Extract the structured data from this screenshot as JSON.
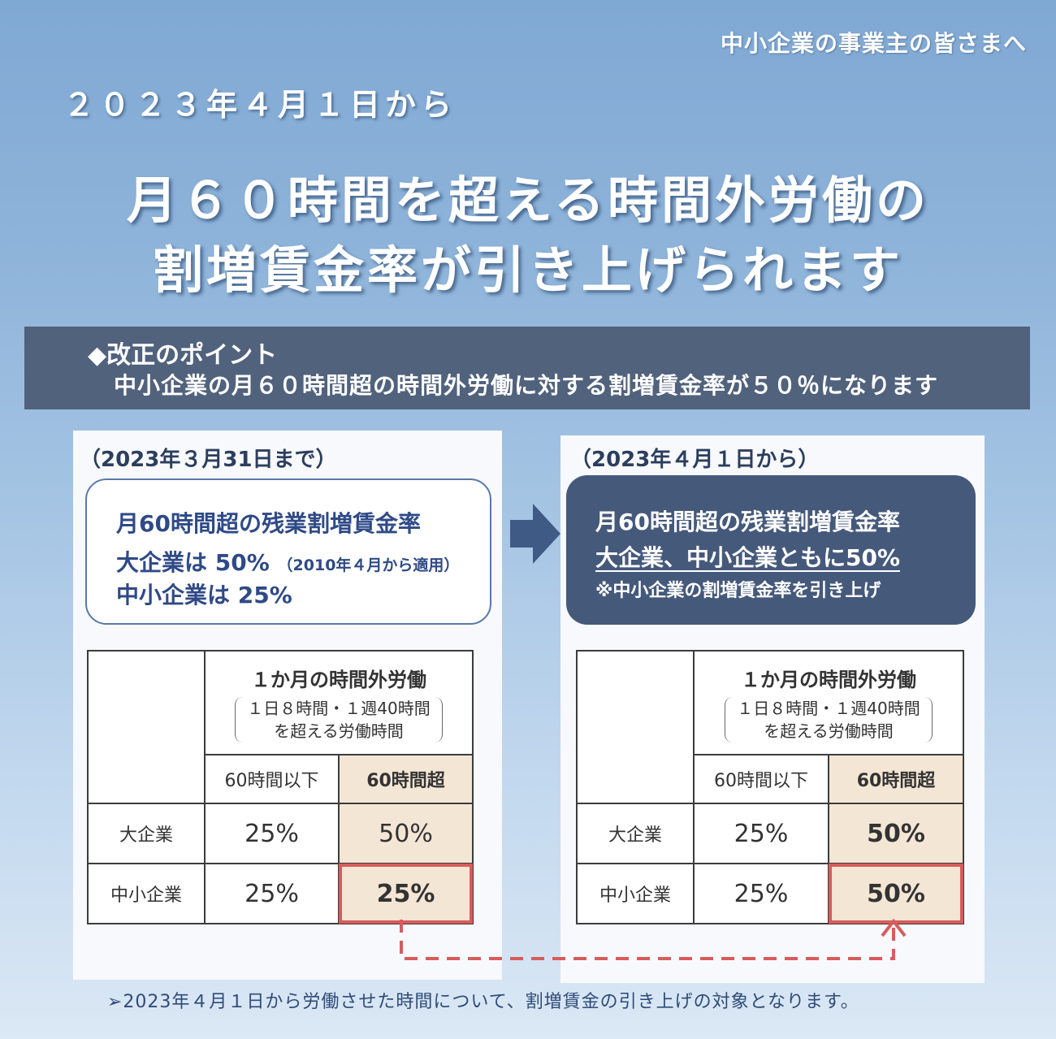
{
  "audience": "中小企業の事業主の皆さまへ",
  "effective_date": "２０２３年４月１日から",
  "headline": {
    "line1": "月６０時間を超える時間外労働の",
    "line2": "割増賃金率が引き上げられます"
  },
  "point": {
    "title": "◆改正のポイント",
    "text": "中小企業の月６０時間超の時間外労働に対する割増賃金率が５０％になります"
  },
  "before": {
    "period": "（2023年３月31日まで）",
    "summary": {
      "line1": "月60時間超の残業割増賃金率",
      "line2_main": "大企業は 50%",
      "line2_note": "（2010年４月から適用）",
      "line3": "中小企業は 25%"
    },
    "table": {
      "header_title": "１か月の時間外労働",
      "header_note_1": "１日８時間・１週40時間",
      "header_note_2": "を超える労働時間",
      "col_under": "60時間以下",
      "col_over": "60時間超",
      "rows": [
        {
          "label": "大企業",
          "under": "25%",
          "over": "50%"
        },
        {
          "label": "中小企業",
          "under": "25%",
          "over": "25%"
        }
      ]
    }
  },
  "after": {
    "period": "（2023年４月１日から）",
    "summary": {
      "line1": "月60時間超の残業割増賃金率",
      "line2": "大企業、中小企業ともに50%",
      "line3": "※中小企業の割増賃金率を引き上げ"
    },
    "table": {
      "header_title": "１か月の時間外労働",
      "header_note_1": "１日８時間・１週40時間",
      "header_note_2": "を超える労働時間",
      "col_under": "60時間以下",
      "col_over": "60時間超",
      "rows": [
        {
          "label": "大企業",
          "under": "25%",
          "over": "50%"
        },
        {
          "label": "中小企業",
          "under": "25%",
          "over": "50%"
        }
      ]
    }
  },
  "footnote": "➢2023年４月１日から労働させた時間について、割増賃金の引き上げの対象となります。",
  "colors": {
    "band": "#51627d",
    "highlight": "#d75c5c",
    "beige": "#f4e6d5",
    "dark_box": "#45597b"
  }
}
